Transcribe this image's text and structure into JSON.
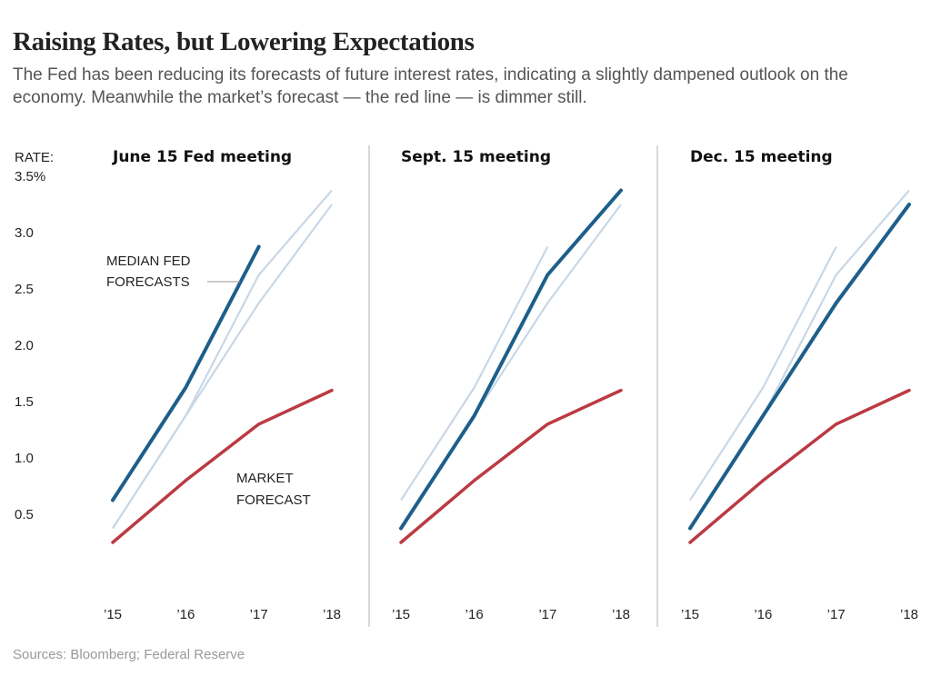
{
  "header": {
    "title": "Raising Rates, but Lowering Expectations",
    "subtitle": "The Fed has been reducing its forecasts of future interest rates, indicating a slightly dampened outlook on the economy. Meanwhile the market’s forecast — the red line — is dimmer still."
  },
  "footer": {
    "source": "Sources: Bloomberg; Federal Reserve"
  },
  "colors": {
    "current": "#1d5f8a",
    "previous": "#c9d7e6",
    "market": "#bb3a42",
    "axis": "#cccccc",
    "text": "#222222"
  },
  "chart_data": {
    "type": "line",
    "ylabel": "RATE:",
    "ylim": [
      0,
      3.5
    ],
    "y_ticks": [
      "3.5%",
      "3.0",
      "2.5",
      "2.0",
      "1.5",
      "1.0",
      "0.5"
    ],
    "y_tick_values": [
      3.5,
      3.0,
      2.5,
      2.0,
      1.5,
      1.0,
      0.5
    ],
    "x": [
      "’15",
      "’16",
      "’17",
      "’18"
    ],
    "annotations": {
      "fed": [
        "MEDIAN FED",
        "FORECASTS"
      ],
      "market": [
        "MARKET",
        "FORECAST"
      ]
    },
    "panels": [
      {
        "title": "June 15 Fed meeting",
        "current": {
          "name": "June 15 Fed meeting",
          "values": [
            0.625,
            1.625,
            2.875,
            null
          ]
        },
        "previous": [
          {
            "values": [
              0.375,
              1.375,
              2.625,
              3.375
            ]
          },
          {
            "values": [
              0.375,
              1.375,
              2.375,
              3.25
            ]
          }
        ],
        "market": {
          "values": [
            0.25,
            0.8,
            1.3,
            1.6
          ]
        }
      },
      {
        "title": "Sept. 15 meeting",
        "current": {
          "name": "Sept. 15 meeting",
          "values": [
            0.375,
            1.375,
            2.625,
            3.375
          ]
        },
        "previous": [
          {
            "values": [
              0.625,
              1.625,
              2.875,
              null
            ]
          },
          {
            "values": [
              0.375,
              1.375,
              2.375,
              3.25
            ]
          }
        ],
        "market": {
          "values": [
            0.25,
            0.8,
            1.3,
            1.6
          ]
        }
      },
      {
        "title": "Dec. 15 meeting",
        "current": {
          "name": "Dec. 15 meeting",
          "values": [
            0.375,
            1.375,
            2.375,
            3.25
          ]
        },
        "previous": [
          {
            "values": [
              0.625,
              1.625,
              2.875,
              null
            ]
          },
          {
            "values": [
              0.375,
              1.375,
              2.625,
              3.375
            ]
          }
        ],
        "market": {
          "values": [
            0.25,
            0.8,
            1.3,
            1.6
          ]
        }
      }
    ]
  }
}
